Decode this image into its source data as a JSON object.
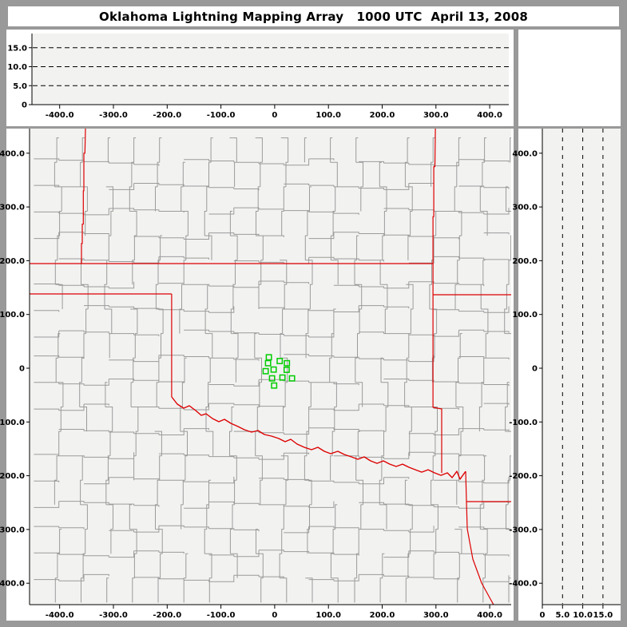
{
  "title": "Oklahoma Lightning Mapping Array   1000 UTC  April 13, 2008",
  "colors": {
    "frame": "#999999",
    "panel_white": "#ffffff",
    "plot_bg": "#f2f2f0",
    "county_line": "#9b9b9b",
    "state_border": "#dd0000",
    "river": "#dd0000",
    "station": "#00cc00",
    "axis": "#000000"
  },
  "axes": {
    "east_west_km": {
      "min": -456,
      "max": 440,
      "ticks": [
        {
          "v": -400,
          "label": "-400.0"
        },
        {
          "v": -300,
          "label": "-300.0"
        },
        {
          "v": -200,
          "label": "-200.0"
        },
        {
          "v": -100,
          "label": "-100.0"
        },
        {
          "v": 0,
          "label": "0"
        },
        {
          "v": 100,
          "label": "100.0"
        },
        {
          "v": 200,
          "label": "200.0"
        },
        {
          "v": 300,
          "label": "300.0"
        },
        {
          "v": 400,
          "label": "400.0"
        }
      ]
    },
    "north_south_km": {
      "min": -440,
      "max": 446,
      "ticks": [
        {
          "v": 400,
          "label": "400.0"
        },
        {
          "v": 300,
          "label": "300.0"
        },
        {
          "v": 200,
          "label": "200.0"
        },
        {
          "v": 100,
          "label": "100.0"
        },
        {
          "v": 0,
          "label": "0"
        },
        {
          "v": -100,
          "label": "-100.0"
        },
        {
          "v": -200,
          "label": "-200.0"
        },
        {
          "v": -300,
          "label": "-300.0"
        },
        {
          "v": -400,
          "label": "-400.0"
        }
      ]
    },
    "altitude_km": {
      "min": 0,
      "max": 18.5,
      "ticks": [
        {
          "v": 0,
          "label": "0"
        },
        {
          "v": 5,
          "label": "5.0"
        },
        {
          "v": 10,
          "label": "10.0"
        },
        {
          "v": 15,
          "label": "15.0"
        }
      ],
      "dashed_levels": [
        5,
        10,
        15
      ]
    }
  },
  "map": {
    "stations_km": [
      [
        -10.8,
        20.4
      ],
      [
        9.4,
        13.4
      ],
      [
        22.7,
        9.4
      ],
      [
        -12.3,
        9.4
      ],
      [
        -1.9,
        -2.5
      ],
      [
        -16.8,
        -5.5
      ],
      [
        22.3,
        -3.0
      ],
      [
        -4.9,
        -18.9
      ],
      [
        14.4,
        -17.4
      ],
      [
        32.2,
        -18.9
      ],
      [
        -1.0,
        -32.2
      ]
    ],
    "state_borders_km": {
      "west_vertical": [
        [
          -352,
          446
        ],
        [
          -353,
          400
        ],
        [
          -355,
          400
        ],
        [
          -355,
          330
        ],
        [
          -356,
          330
        ],
        [
          -356,
          268
        ],
        [
          -358,
          268
        ],
        [
          -358,
          232
        ],
        [
          -359.5,
          232
        ],
        [
          -359.5,
          194.7
        ]
      ],
      "kansas_south": [
        [
          -456,
          194.7
        ],
        [
          294.5,
          194.7
        ]
      ],
      "panhandle_south": [
        [
          -456,
          138.2
        ],
        [
          -191.7,
          138.2
        ]
      ],
      "texas_west": [
        [
          -191.7,
          138.2
        ],
        [
          -191.7,
          -53.5
        ]
      ],
      "east_vertical": [
        [
          299,
          446
        ],
        [
          298,
          375
        ],
        [
          296,
          375
        ],
        [
          296,
          282
        ],
        [
          294.5,
          282
        ],
        [
          294.5,
          194.7
        ],
        [
          294.5,
          -72.8
        ],
        [
          310.7,
          -75.8
        ],
        [
          310.7,
          -195
        ]
      ],
      "missouri_arkansas": [
        [
          294.5,
          136.7
        ],
        [
          440,
          136.7
        ]
      ],
      "red_river": [
        [
          -191.5,
          -53.5
        ],
        [
          -181.1,
          -66.9
        ],
        [
          -169.2,
          -74.3
        ],
        [
          -158.8,
          -69.8
        ],
        [
          -147.0,
          -78.8
        ],
        [
          -136.6,
          -87.7
        ],
        [
          -127.6,
          -84.7
        ],
        [
          -115.8,
          -93.6
        ],
        [
          -103.9,
          -99.6
        ],
        [
          -93.5,
          -95.1
        ],
        [
          -81.6,
          -102.5
        ],
        [
          -68.2,
          -108.5
        ],
        [
          -56.3,
          -114.4
        ],
        [
          -42.9,
          -118.9
        ],
        [
          -31.1,
          -115.9
        ],
        [
          -19.2,
          -123.3
        ],
        [
          -5.8,
          -126.3
        ],
        [
          7.6,
          -130.8
        ],
        [
          19.5,
          -136.7
        ],
        [
          29.9,
          -132.2
        ],
        [
          41.8,
          -141.2
        ],
        [
          55.1,
          -147.1
        ],
        [
          68.5,
          -151.6
        ],
        [
          80.4,
          -147.1
        ],
        [
          92.3,
          -154.6
        ],
        [
          104.2,
          -159.0
        ],
        [
          117.5,
          -154.6
        ],
        [
          129.4,
          -160.5
        ],
        [
          142.8,
          -165.0
        ],
        [
          154.7,
          -169.4
        ],
        [
          166.6,
          -165.0
        ],
        [
          178.5,
          -172.4
        ],
        [
          190.3,
          -176.9
        ],
        [
          202.2,
          -172.4
        ],
        [
          214.1,
          -178.4
        ],
        [
          226.0,
          -182.8
        ],
        [
          237.9,
          -178.4
        ],
        [
          249.8,
          -184.3
        ],
        [
          261.7,
          -188.8
        ],
        [
          273.6,
          -193.3
        ],
        [
          285.5,
          -188.8
        ],
        [
          297.4,
          -194.7
        ],
        [
          309.3,
          -199.2
        ],
        [
          321.2,
          -194.7
        ],
        [
          330.1,
          -203.6
        ],
        [
          339.0,
          -191.8
        ],
        [
          344.9,
          -206.6
        ],
        [
          350.9,
          -197.7
        ],
        [
          355.3,
          -191.8
        ]
      ],
      "texas_arkansas_louisiana": [
        [
          355.3,
          -191.8
        ],
        [
          356.8,
          -248.1
        ],
        [
          358.3,
          -298.7
        ],
        [
          368.6,
          -355.1
        ],
        [
          385,
          -399.7
        ],
        [
          401.3,
          -429.4
        ],
        [
          407.2,
          -440
        ]
      ],
      "arkansas_louisiana": [
        [
          356.8,
          -248.1
        ],
        [
          440,
          -248.1
        ]
      ]
    },
    "county_grid_km": {
      "x_min": -448,
      "x_max": 436,
      "y_min": -436,
      "y_max": 445,
      "col_step": 46.5,
      "row_step": 45.5
    }
  },
  "chart_data": {
    "type": "scatter",
    "title": "Oklahoma Lightning Mapping Array   1000 UTC  April 13, 2008",
    "legend_position": "none",
    "panels": [
      {
        "id": "top",
        "role": "altitude (km) vs east-west distance (km)",
        "xlim_km": [
          -456,
          440
        ],
        "ylim_km": [
          0,
          18.5
        ],
        "x_tick_labels": [
          "-400.0",
          "-300.0",
          "-200.0",
          "-100.0",
          "0",
          "100.0",
          "200.0",
          "300.0",
          "400.0"
        ],
        "y_tick_labels": [
          "0",
          "5.0",
          "10.0",
          "15.0"
        ],
        "grid": "horizontal dashed black lines at 5, 10, 15 km",
        "points": []
      },
      {
        "id": "main",
        "role": "plan view map with county and state boundaries",
        "xlim_km": [
          -456,
          440
        ],
        "ylim_km": [
          -440,
          446
        ],
        "x_tick_labels": [
          "-400.0",
          "-300.0",
          "-200.0",
          "-100.0",
          "0",
          "100.0",
          "200.0",
          "300.0",
          "400.0"
        ],
        "y_tick_labels": [
          "400.0",
          "300.0",
          "200.0",
          "100.0",
          "0",
          "-100.0",
          "-200.0",
          "-300.0",
          "-400.0"
        ],
        "series": [
          {
            "name": "LMA station locations",
            "marker": "open green square",
            "xy_km": [
              [
                -10.8,
                20.4
              ],
              [
                9.4,
                13.4
              ],
              [
                22.7,
                9.4
              ],
              [
                -12.3,
                9.4
              ],
              [
                -1.9,
                -2.5
              ],
              [
                -16.8,
                -5.5
              ],
              [
                22.3,
                -3.0
              ],
              [
                -4.9,
                -18.9
              ],
              [
                14.4,
                -17.4
              ],
              [
                32.2,
                -18.9
              ],
              [
                -1.0,
                -32.2
              ]
            ]
          }
        ]
      },
      {
        "id": "right",
        "role": "north-south distance (km) vs altitude (km)",
        "xlim_km": [
          0,
          19.4
        ],
        "ylim_km": [
          -440,
          446
        ],
        "x_tick_labels": [
          "0",
          "5.0",
          "10.0",
          "15.0"
        ],
        "y_tick_labels": [
          "400.0",
          "300.0",
          "200.0",
          "100.0",
          "0",
          "-100.0",
          "-200.0",
          "-300.0",
          "-400.0"
        ],
        "grid": "vertical dashed black lines at 5, 10, 15 km",
        "points": []
      }
    ]
  }
}
